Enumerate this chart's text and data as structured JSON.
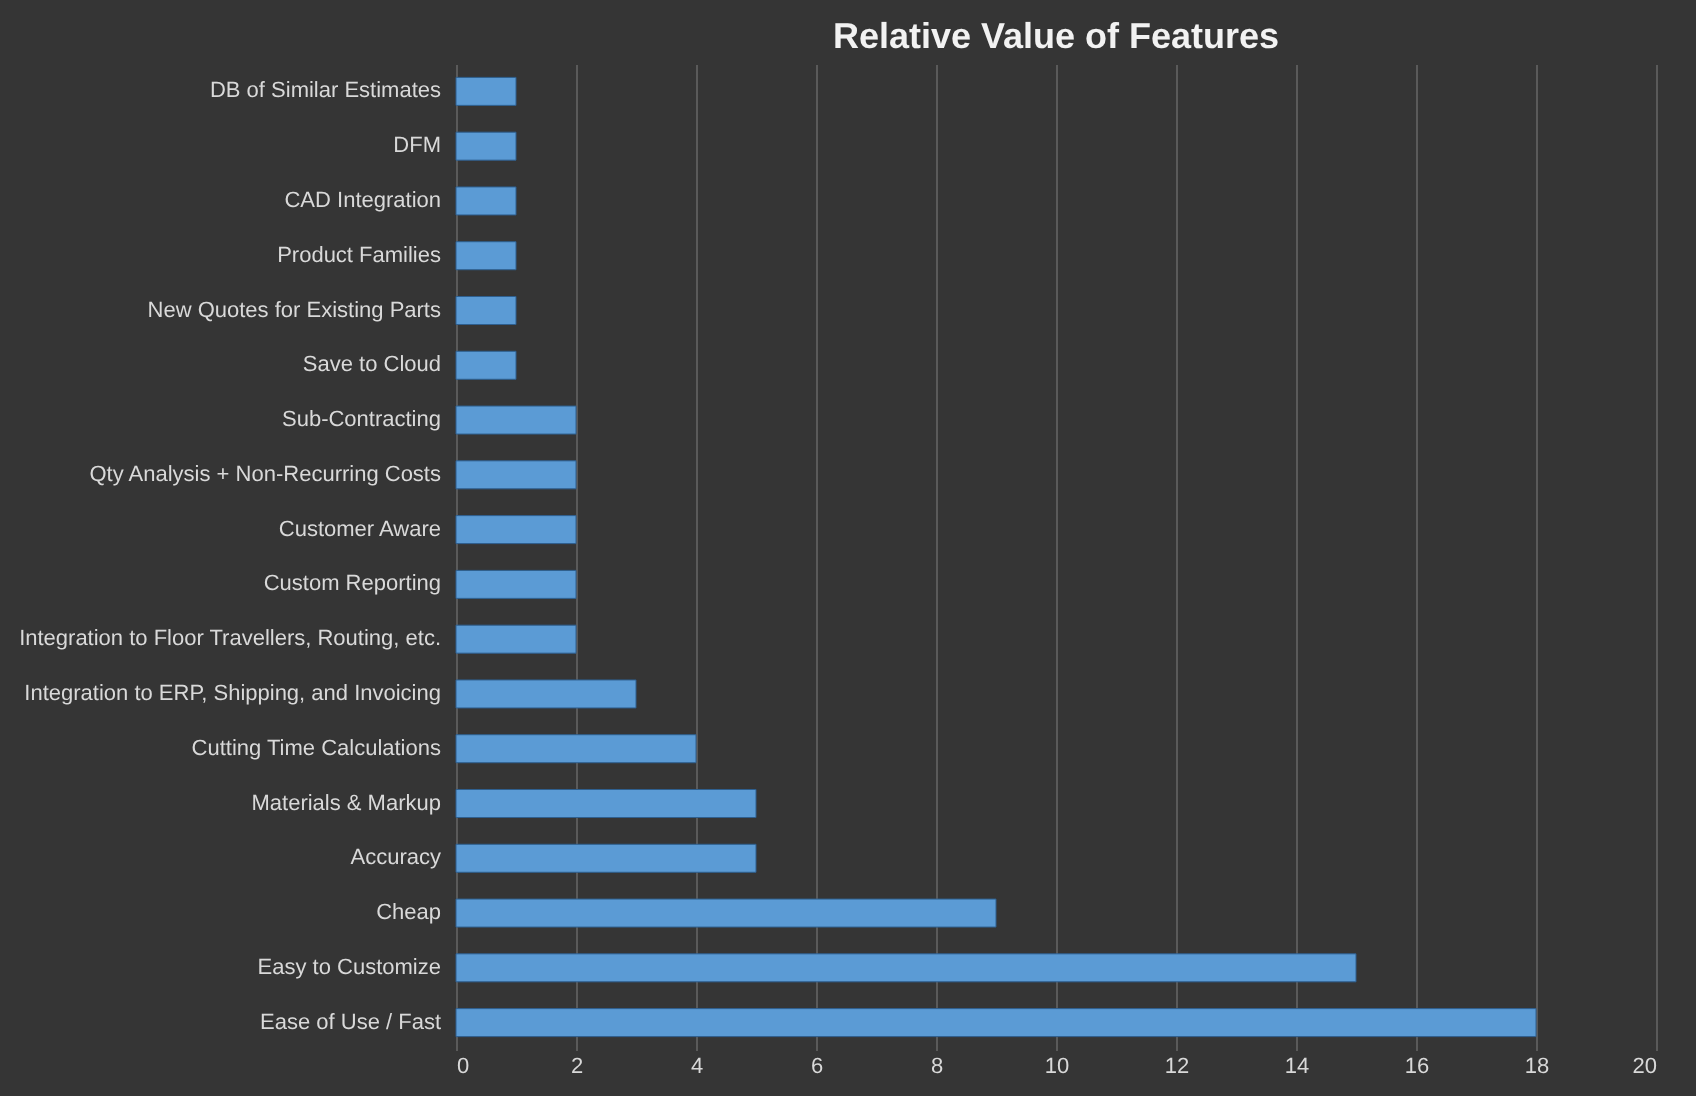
{
  "chart_data": {
    "type": "bar",
    "orientation": "horizontal",
    "title": "Relative Value of Features",
    "categories": [
      "DB of Similar Estimates",
      "DFM",
      "CAD Integration",
      "Product Families",
      "New Quotes for Existing Parts",
      "Save to Cloud",
      "Sub-Contracting",
      "Qty Analysis + Non-Recurring Costs",
      "Customer Aware",
      "Custom Reporting",
      "Integration to Floor Travellers, Routing, etc.",
      "Integration to ERP, Shipping, and Invoicing",
      "Cutting Time Calculations",
      "Materials & Markup",
      "Accuracy",
      "Cheap",
      "Easy to Customize",
      "Ease of Use / Fast"
    ],
    "values": [
      1,
      1,
      1,
      1,
      1,
      1,
      2,
      2,
      2,
      2,
      2,
      3,
      4,
      5,
      5,
      9,
      15,
      18
    ],
    "color": "#5b9bd5",
    "xlim": [
      0,
      20
    ],
    "xticks": [
      0,
      2,
      4,
      6,
      8,
      10,
      12,
      14,
      16,
      18,
      20
    ],
    "grid": "x"
  }
}
